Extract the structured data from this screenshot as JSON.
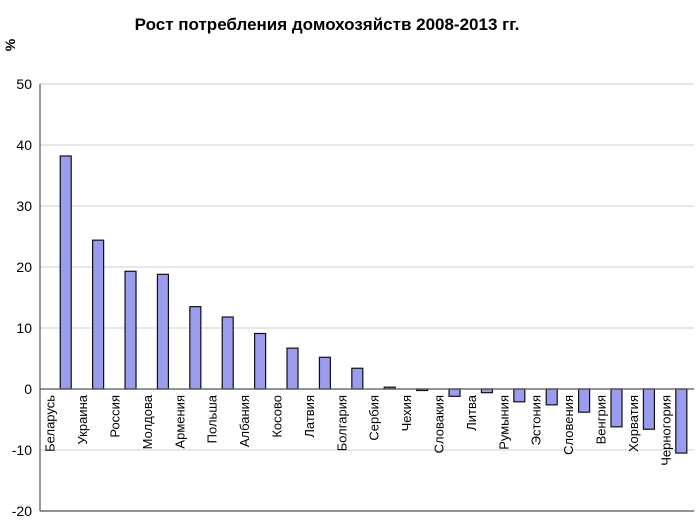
{
  "chart_data": {
    "type": "bar",
    "title": "Рост потребления домохозяйств 2008-2013 гг.",
    "ylabel": "%",
    "xlabel": "",
    "ylim": [
      -20,
      50
    ],
    "yticks": [
      50,
      40,
      30,
      20,
      10,
      0,
      -10,
      -20
    ],
    "grid": true,
    "categories": [
      "Беларусь",
      "Украина",
      "Россия",
      "Молдова",
      "Армения",
      "Польша",
      "Албания",
      "Косово",
      "Латвия",
      "Болгария",
      "Сербия",
      "Чехия",
      "Словакия",
      "Литва",
      "Румыния",
      "Эстония",
      "Словения",
      "Венгрия",
      "Хорватия",
      "Черногория"
    ],
    "values": [
      38.2,
      24.4,
      19.3,
      18.8,
      13.5,
      11.8,
      9.1,
      6.7,
      5.2,
      3.4,
      0.3,
      -0.2,
      -1.2,
      -0.6,
      -2.1,
      -2.6,
      -3.8,
      -6.2,
      -6.6,
      -10.5
    ],
    "bar_color": "#9a9cf0"
  }
}
